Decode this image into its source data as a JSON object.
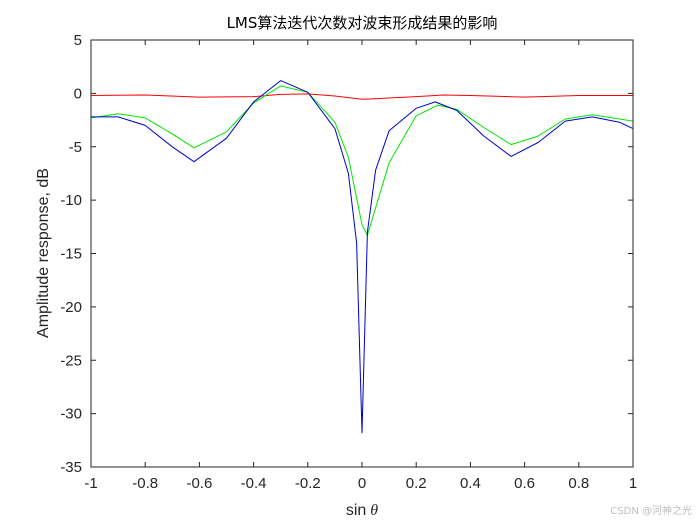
{
  "chart_data": {
    "type": "line",
    "title": "LMS算法迭代次数对波束形成结果的影响",
    "xlabel_text": "sin",
    "xlabel_symbol": "θ",
    "ylabel": "Amplitude response, dB",
    "xlim": [
      -1,
      1
    ],
    "ylim": [
      -35,
      5
    ],
    "xticks": [
      -1,
      -0.8,
      -0.6,
      -0.4,
      -0.2,
      0,
      0.2,
      0.4,
      0.6,
      0.8,
      1
    ],
    "xtick_labels": [
      "-1",
      "-0.8",
      "-0.6",
      "-0.4",
      "-0.2",
      "0",
      "0.2",
      "0.4",
      "0.6",
      "0.8",
      "1"
    ],
    "yticks": [
      5,
      0,
      -5,
      -10,
      -15,
      -20,
      -25,
      -30,
      -35
    ],
    "ytick_labels": [
      "5",
      "0",
      "-5",
      "-10",
      "-15",
      "-20",
      "-25",
      "-30",
      "-35"
    ],
    "grid": false,
    "legend": "none",
    "series": [
      {
        "color": "#ff0000",
        "x": [
          -1,
          -0.8,
          -0.6,
          -0.4,
          -0.3,
          -0.2,
          -0.1,
          0,
          0.05,
          0.2,
          0.3,
          0.4,
          0.6,
          0.8,
          1
        ],
        "y": [
          -0.2,
          -0.15,
          -0.35,
          -0.3,
          -0.1,
          -0.05,
          -0.25,
          -0.55,
          -0.5,
          -0.3,
          -0.15,
          -0.2,
          -0.35,
          -0.2,
          -0.2
        ]
      },
      {
        "color": "#00e600",
        "x": [
          -1,
          -0.9,
          -0.8,
          -0.7,
          -0.62,
          -0.5,
          -0.4,
          -0.3,
          -0.2,
          -0.1,
          -0.05,
          0,
          0.02,
          0.1,
          0.2,
          0.28,
          0.35,
          0.45,
          0.55,
          0.65,
          0.75,
          0.85,
          0.95,
          1
        ],
        "y": [
          -2.3,
          -1.9,
          -2.3,
          -3.8,
          -5.1,
          -3.6,
          -0.9,
          0.7,
          0.1,
          -2.7,
          -6.0,
          -12.3,
          -13.3,
          -6.5,
          -2.1,
          -1.1,
          -1.5,
          -3.2,
          -4.8,
          -4.0,
          -2.4,
          -2.0,
          -2.4,
          -2.6
        ]
      },
      {
        "color": "#0000cc",
        "x": [
          -1,
          -0.9,
          -0.8,
          -0.7,
          -0.62,
          -0.5,
          -0.4,
          -0.3,
          -0.2,
          -0.1,
          -0.05,
          -0.02,
          0,
          0.02,
          0.05,
          0.1,
          0.2,
          0.27,
          0.35,
          0.45,
          0.55,
          0.65,
          0.75,
          0.85,
          0.95,
          1
        ],
        "y": [
          -2.2,
          -2.2,
          -3.0,
          -5.0,
          -6.4,
          -4.2,
          -0.8,
          1.2,
          0.1,
          -3.3,
          -7.5,
          -14.0,
          -31.8,
          -13.0,
          -7.2,
          -3.5,
          -1.4,
          -0.8,
          -1.6,
          -4.0,
          -5.9,
          -4.6,
          -2.6,
          -2.2,
          -2.7,
          -3.3
        ]
      }
    ]
  },
  "watermark": "CSDN @河神之光"
}
